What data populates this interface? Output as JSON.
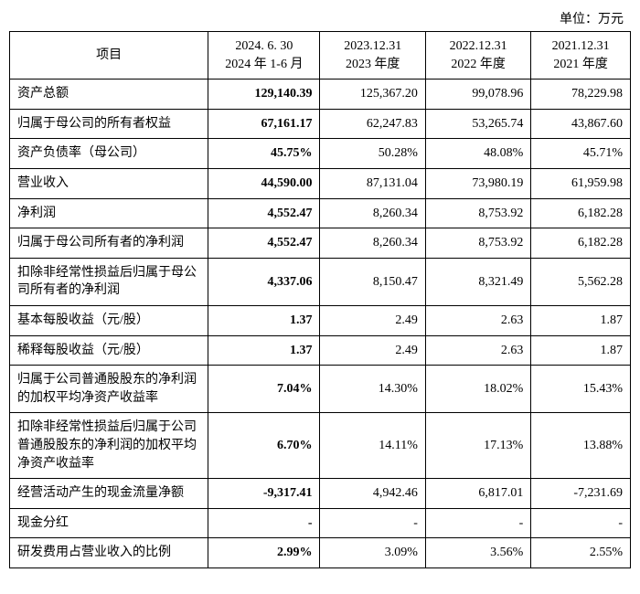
{
  "unit_label": "单位：万元",
  "header": {
    "item": "项目",
    "cols": [
      {
        "line1": "2024. 6. 30",
        "line2": "2024 年 1-6 月"
      },
      {
        "line1": "2023.12.31",
        "line2": "2023 年度"
      },
      {
        "line1": "2022.12.31",
        "line2": "2022 年度"
      },
      {
        "line1": "2021.12.31",
        "line2": "2021 年度"
      }
    ]
  },
  "rows": [
    {
      "label": "资产总额",
      "v": [
        "129,140.39",
        "125,367.20",
        "99,078.96",
        "78,229.98"
      ]
    },
    {
      "label": "归属于母公司的所有者权益",
      "v": [
        "67,161.17",
        "62,247.83",
        "53,265.74",
        "43,867.60"
      ]
    },
    {
      "label": "资产负债率（母公司）",
      "v": [
        "45.75%",
        "50.28%",
        "48.08%",
        "45.71%"
      ]
    },
    {
      "label": "营业收入",
      "v": [
        "44,590.00",
        "87,131.04",
        "73,980.19",
        "61,959.98"
      ]
    },
    {
      "label": "净利润",
      "v": [
        "4,552.47",
        "8,260.34",
        "8,753.92",
        "6,182.28"
      ]
    },
    {
      "label": "归属于母公司所有者的净利润",
      "v": [
        "4,552.47",
        "8,260.34",
        "8,753.92",
        "6,182.28"
      ]
    },
    {
      "label": "扣除非经常性损益后归属于母公司所有者的净利润",
      "v": [
        "4,337.06",
        "8,150.47",
        "8,321.49",
        "5,562.28"
      ]
    },
    {
      "label": "基本每股收益（元/股）",
      "v": [
        "1.37",
        "2.49",
        "2.63",
        "1.87"
      ]
    },
    {
      "label": "稀释每股收益（元/股）",
      "v": [
        "1.37",
        "2.49",
        "2.63",
        "1.87"
      ]
    },
    {
      "label": "归属于公司普通股股东的净利润的加权平均净资产收益率",
      "v": [
        "7.04%",
        "14.30%",
        "18.02%",
        "15.43%"
      ]
    },
    {
      "label": "扣除非经常性损益后归属于公司普通股股东的净利润的加权平均净资产收益率",
      "v": [
        "6.70%",
        "14.11%",
        "17.13%",
        "13.88%"
      ]
    },
    {
      "label": "经营活动产生的现金流量净额",
      "v": [
        "-9,317.41",
        "4,942.46",
        "6,817.01",
        "-7,231.69"
      ]
    },
    {
      "label": "现金分红",
      "v": [
        "-",
        "-",
        "-",
        "-"
      ]
    },
    {
      "label": "研发费用占营业收入的比例",
      "v": [
        "2.99%",
        "3.09%",
        "3.56%",
        "2.55%"
      ]
    }
  ],
  "style": {
    "border_color": "#000000",
    "background_color": "#ffffff",
    "text_color": "#000000",
    "header_fontsize": 14,
    "body_fontsize": 14,
    "bold_first_value_col": true
  }
}
